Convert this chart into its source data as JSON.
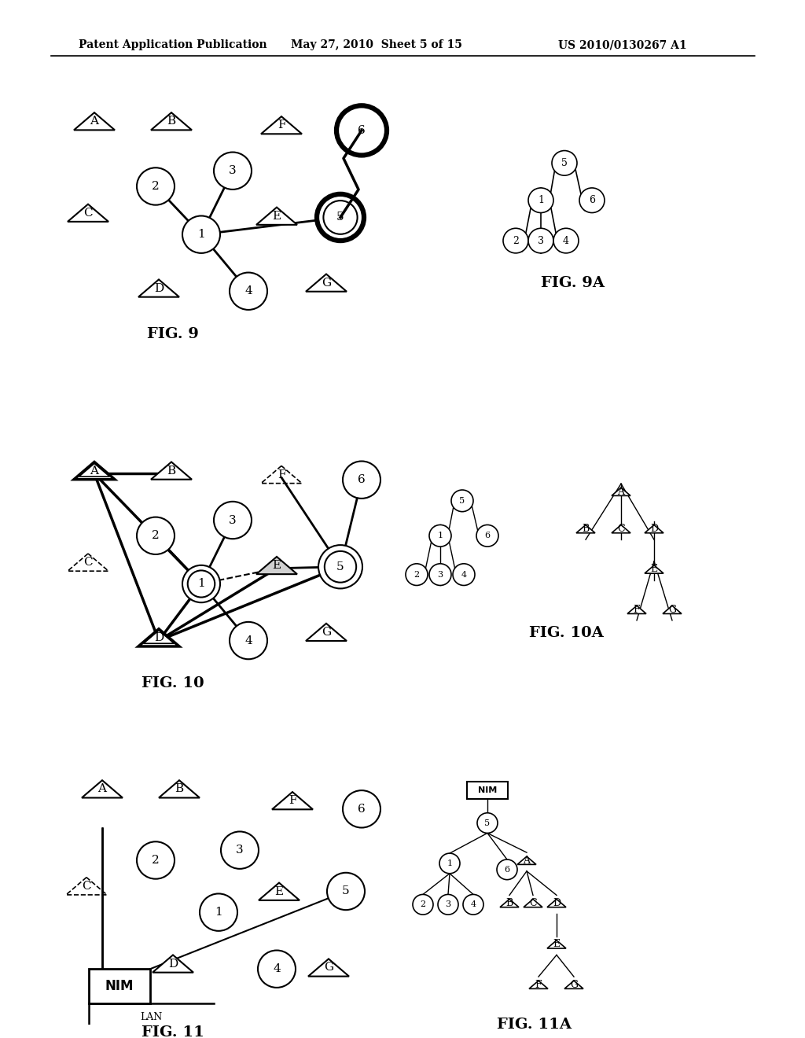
{
  "header_left": "Patent Application Publication",
  "header_mid": "May 27, 2010  Sheet 5 of 15",
  "header_right": "US 2010/0130267 A1",
  "bg_color": "#ffffff",
  "fig9_label": "FIG. 9",
  "fig9a_label": "FIG. 9A",
  "fig10_label": "FIG. 10",
  "fig10a_label": "FIG. 10A",
  "fig11_label": "FIG. 11",
  "fig11a_label": "FIG. 11A"
}
